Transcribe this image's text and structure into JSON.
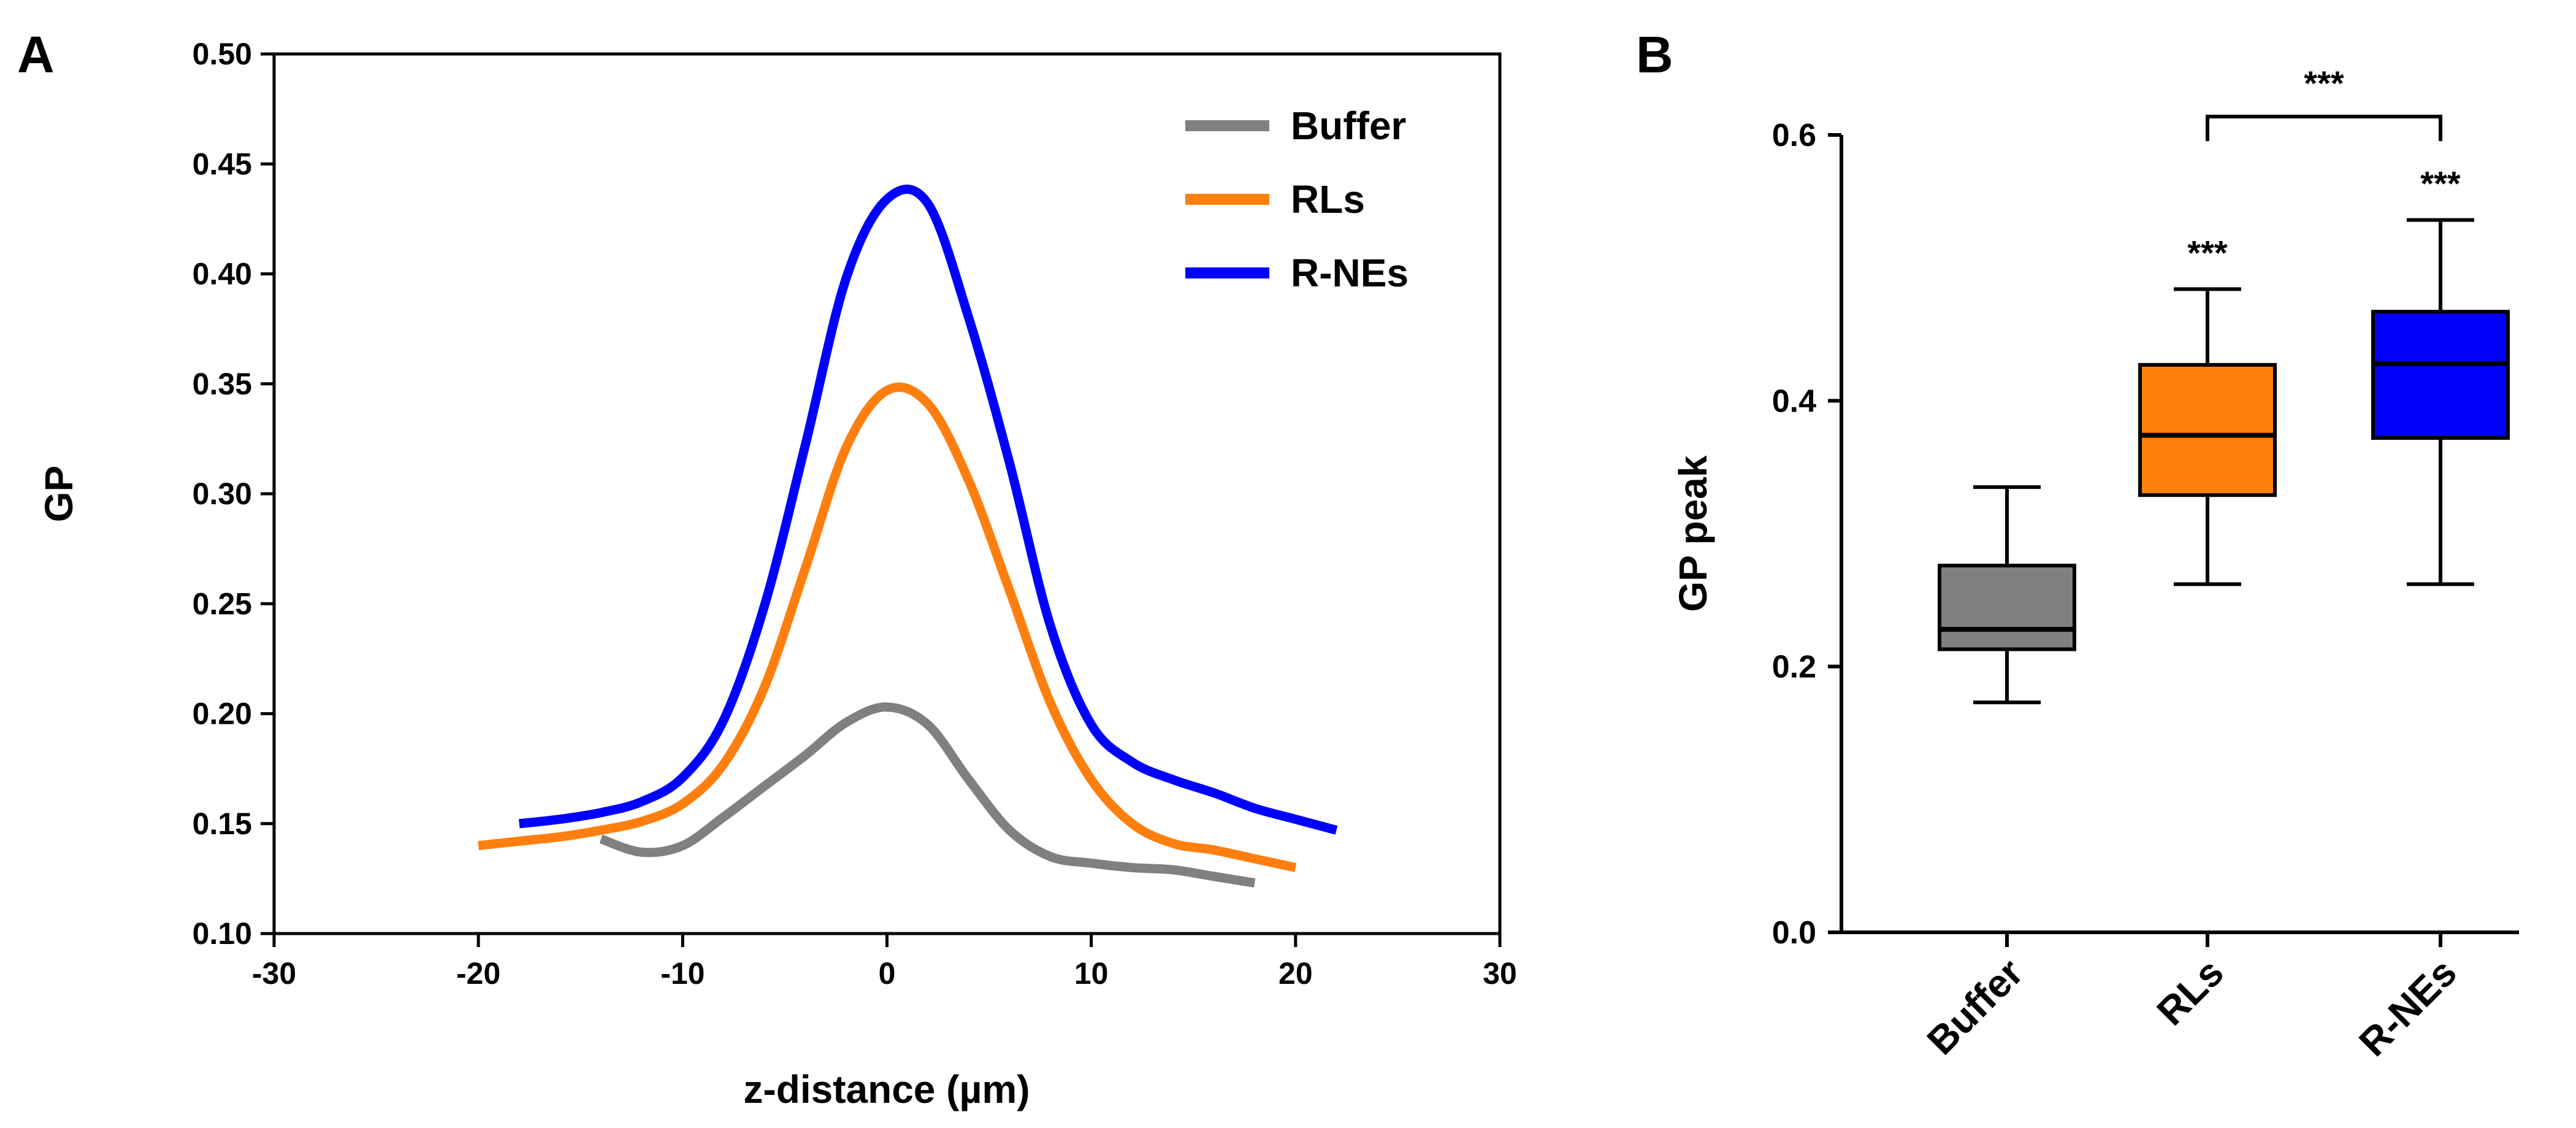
{
  "panel_labels": {
    "a": "A",
    "b": "B"
  },
  "chart_data": [
    {
      "type": "line",
      "panel": "A",
      "title": "",
      "xlabel": "z-distance (µm)",
      "ylabel": "GP",
      "xlim": [
        -30,
        30
      ],
      "ylim": [
        0.1,
        0.5
      ],
      "xticks": [
        -30,
        -20,
        -10,
        0,
        10,
        20,
        30
      ],
      "xtick_labels": [
        "-30",
        "-20",
        "-10",
        "0",
        "10",
        "20",
        "30"
      ],
      "yticks": [
        0.1,
        0.15,
        0.2,
        0.25,
        0.3,
        0.35,
        0.4,
        0.45,
        0.5
      ],
      "ytick_labels": [
        "0.10",
        "0.15",
        "0.20",
        "0.25",
        "0.30",
        "0.35",
        "0.40",
        "0.45",
        "0.50"
      ],
      "grid": false,
      "legend": "top-right",
      "series": [
        {
          "name": "Buffer",
          "color": "#808080",
          "x": [
            -14,
            -12,
            -10,
            -8,
            -6,
            -4,
            -2,
            0,
            2,
            4,
            6,
            8,
            10,
            12,
            14,
            16,
            18
          ],
          "y": [
            0.143,
            0.137,
            0.14,
            0.153,
            0.167,
            0.181,
            0.196,
            0.203,
            0.195,
            0.17,
            0.147,
            0.135,
            0.132,
            0.13,
            0.129,
            0.126,
            0.123
          ]
        },
        {
          "name": "RLs",
          "color": "#ff7f0e",
          "x": [
            -20,
            -18,
            -16,
            -14,
            -12,
            -10,
            -8,
            -6,
            -4,
            -2,
            0,
            2,
            4,
            6,
            8,
            10,
            12,
            14,
            16,
            18,
            20
          ],
          "y": [
            0.14,
            0.142,
            0.144,
            0.147,
            0.151,
            0.159,
            0.177,
            0.212,
            0.266,
            0.321,
            0.347,
            0.341,
            0.306,
            0.256,
            0.205,
            0.17,
            0.15,
            0.141,
            0.138,
            0.134,
            0.13
          ]
        },
        {
          "name": "R-NEs",
          "color": "#0000ff",
          "x": [
            -18,
            -16,
            -14,
            -12,
            -10,
            -8,
            -6,
            -4,
            -2,
            0,
            2,
            4,
            6,
            8,
            10,
            12,
            14,
            16,
            18,
            20,
            22
          ],
          "y": [
            0.15,
            0.152,
            0.155,
            0.16,
            0.171,
            0.197,
            0.249,
            0.322,
            0.398,
            0.434,
            0.432,
            0.38,
            0.314,
            0.24,
            0.195,
            0.178,
            0.17,
            0.164,
            0.157,
            0.152,
            0.147
          ]
        }
      ]
    },
    {
      "type": "box",
      "panel": "B",
      "title": "",
      "xlabel": "",
      "ylabel": "GP peak",
      "ylim": [
        0.0,
        0.6
      ],
      "yticks": [
        0.0,
        0.2,
        0.4,
        0.6
      ],
      "ytick_labels": [
        "0.0",
        "0.2",
        "0.4",
        "0.6"
      ],
      "categories": [
        "Buffer",
        "RLs",
        "R-NEs"
      ],
      "boxes": [
        {
          "name": "Buffer",
          "color": "#808080",
          "min": 0.173,
          "q1": 0.213,
          "median": 0.228,
          "q3": 0.276,
          "max": 0.335
        },
        {
          "name": "RLs",
          "color": "#ff7f0e",
          "min": 0.262,
          "q1": 0.329,
          "median": 0.374,
          "q3": 0.427,
          "max": 0.484
        },
        {
          "name": "R-NEs",
          "color": "#0000ff",
          "min": 0.262,
          "q1": 0.372,
          "median": 0.428,
          "q3": 0.467,
          "max": 0.536
        }
      ],
      "significance": [
        {
          "target": "RLs",
          "label": "***"
        },
        {
          "target": "R-NEs",
          "label": "***"
        }
      ],
      "bracket": {
        "from": "RLs",
        "to": "R-NEs",
        "label": "***"
      }
    }
  ]
}
